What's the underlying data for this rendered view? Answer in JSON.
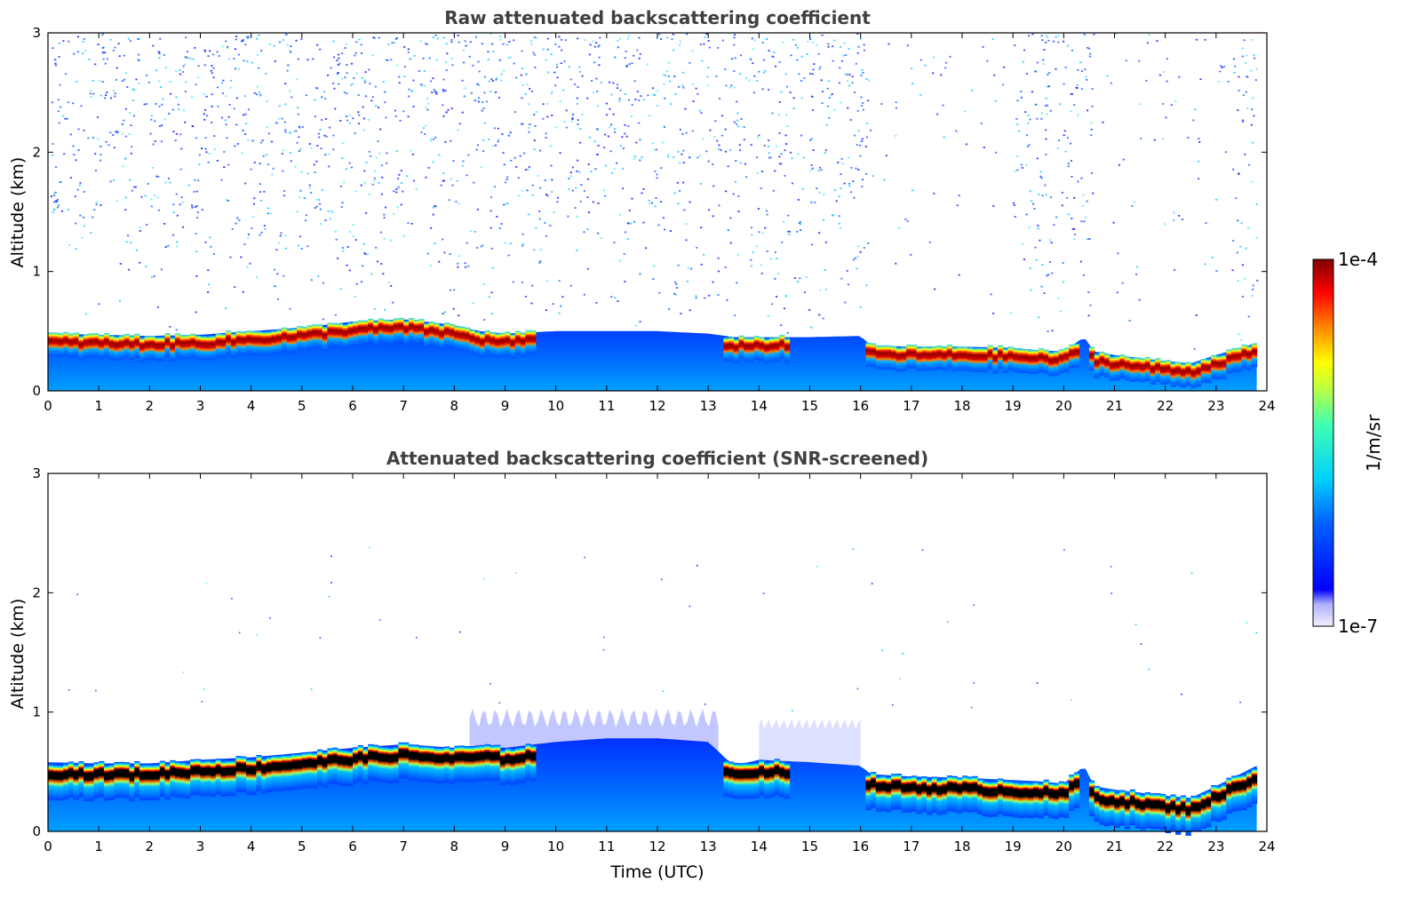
{
  "chart_data": [
    {
      "type": "heatmap",
      "title": "Raw attenuated backscattering coefficient",
      "xlabel": "",
      "ylabel": "Altitude (km)",
      "xlim": [
        0,
        24
      ],
      "ylim": [
        0,
        3
      ],
      "x_ticks": [
        "0",
        "1",
        "2",
        "3",
        "4",
        "5",
        "6",
        "7",
        "8",
        "9",
        "10",
        "11",
        "12",
        "13",
        "14",
        "15",
        "16",
        "17",
        "18",
        "19",
        "20",
        "21",
        "22",
        "23",
        "24"
      ],
      "y_ticks": [
        "0",
        "1",
        "2",
        "3"
      ],
      "data_end_time": 23.8,
      "aerosol_layer_top_km": {
        "time": [
          0,
          1,
          2,
          3,
          4,
          5,
          6,
          7,
          8,
          8.5,
          9,
          10,
          11,
          12,
          13,
          13.5,
          14,
          15,
          16,
          16.2,
          17,
          18,
          19,
          19.5,
          20,
          20.4,
          20.6,
          21,
          22,
          22.5,
          23,
          23.8
        ],
        "altitude": [
          0.48,
          0.47,
          0.46,
          0.47,
          0.5,
          0.53,
          0.58,
          0.6,
          0.55,
          0.5,
          0.48,
          0.5,
          0.5,
          0.5,
          0.48,
          0.45,
          0.45,
          0.45,
          0.46,
          0.38,
          0.37,
          0.37,
          0.36,
          0.34,
          0.33,
          0.45,
          0.33,
          0.3,
          0.25,
          0.23,
          0.3,
          0.4
        ]
      },
      "noise": "high",
      "colorscale": "jet"
    },
    {
      "type": "heatmap",
      "title": "Attenuated backscattering coefficient (SNR-screened)",
      "xlabel": "Time (UTC)",
      "ylabel": "Altitude (km)",
      "xlim": [
        0,
        24
      ],
      "ylim": [
        0,
        3
      ],
      "x_ticks": [
        "0",
        "1",
        "2",
        "3",
        "4",
        "5",
        "6",
        "7",
        "8",
        "9",
        "10",
        "11",
        "12",
        "13",
        "14",
        "15",
        "16",
        "17",
        "18",
        "19",
        "20",
        "21",
        "22",
        "23",
        "24"
      ],
      "y_ticks": [
        "0",
        "1",
        "2",
        "3"
      ],
      "data_end_time": 23.8,
      "aerosol_layer_top_km": {
        "time": [
          0,
          1,
          2,
          3,
          4,
          5,
          6,
          7,
          8,
          8.5,
          9,
          10,
          11,
          12,
          13,
          13.5,
          14,
          15,
          16,
          16.2,
          17,
          18,
          19,
          19.5,
          20,
          20.4,
          20.6,
          21,
          22,
          22.5,
          23,
          23.8
        ],
        "altitude": [
          0.58,
          0.57,
          0.57,
          0.6,
          0.62,
          0.66,
          0.7,
          0.73,
          0.7,
          0.72,
          0.7,
          0.75,
          0.78,
          0.78,
          0.75,
          0.55,
          0.6,
          0.58,
          0.55,
          0.48,
          0.46,
          0.45,
          0.43,
          0.42,
          0.4,
          0.55,
          0.38,
          0.35,
          0.3,
          0.28,
          0.38,
          0.55
        ]
      },
      "noise": "low",
      "colorscale": "jet"
    }
  ],
  "colorbar": {
    "label": "1/m/sr",
    "max_label": "1e-4",
    "min_label": "1e-7",
    "scale": "log",
    "range": [
      1e-07,
      0.0001
    ]
  }
}
